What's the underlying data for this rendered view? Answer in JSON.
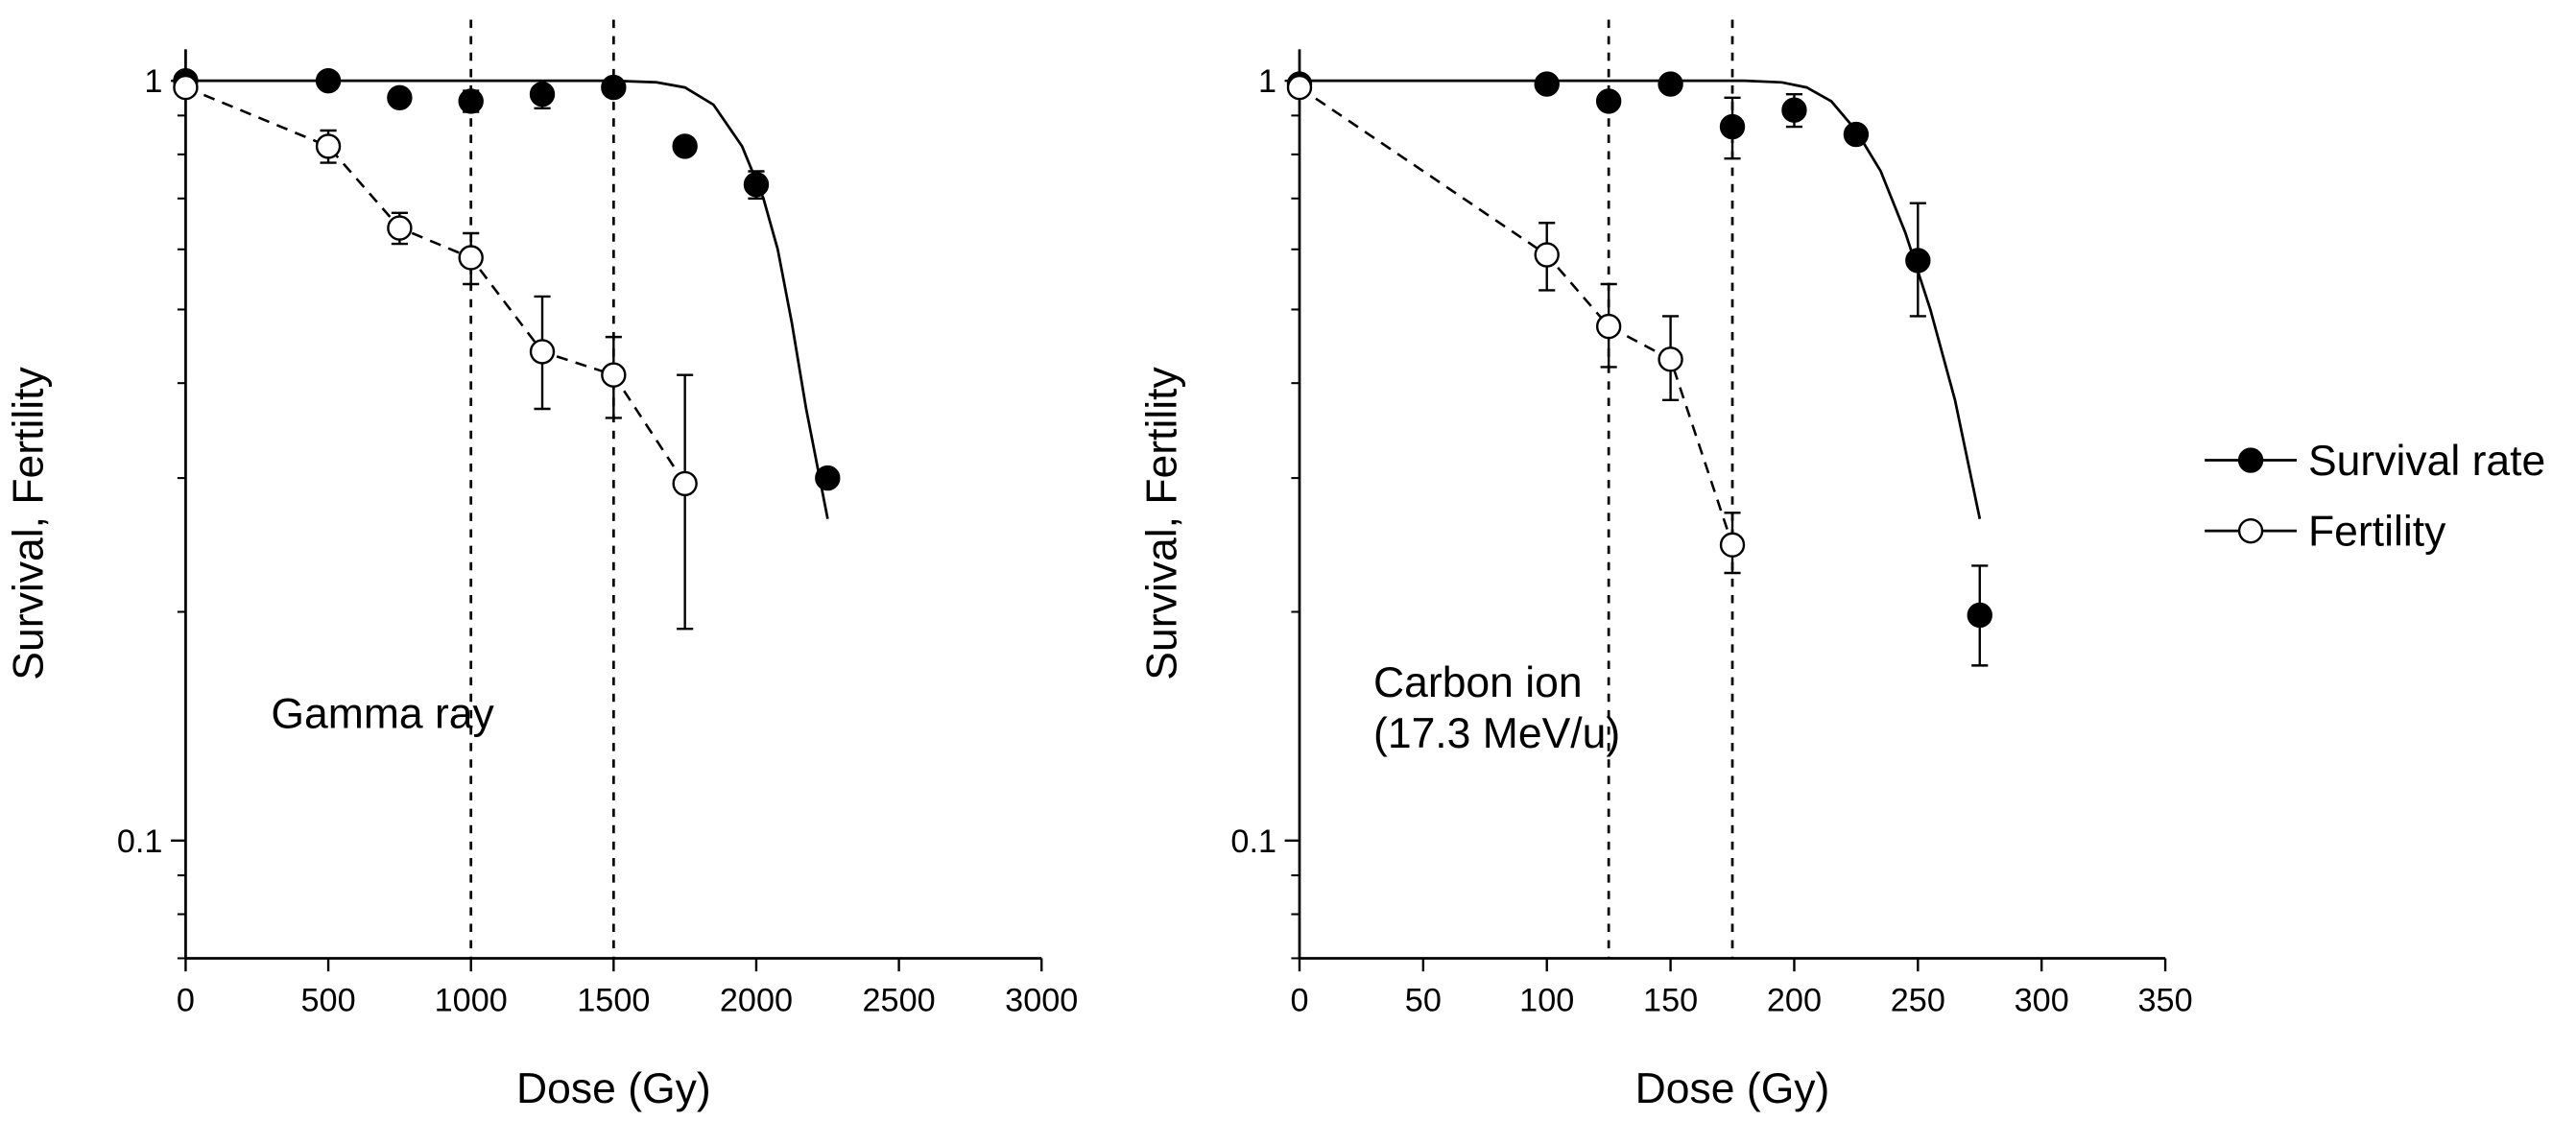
{
  "chart_data": [
    {
      "type": "scatter",
      "annotation": [
        "Gamma ray"
      ],
      "xlabel": "Dose (Gy)",
      "ylabel": "Survival, Fertility",
      "xlim": [
        0,
        3000
      ],
      "ylim": [
        0.07,
        1.1
      ],
      "yscale": "log",
      "xticks": [
        0,
        500,
        1000,
        1500,
        2000,
        2500,
        3000
      ],
      "yticks": [
        {
          "value": 0.1,
          "label": "0.1"
        },
        {
          "value": 1,
          "label": "1"
        }
      ],
      "vlines": [
        1000,
        1500
      ],
      "series": [
        {
          "name": "Survival rate",
          "marker": "filled-circle",
          "line": "solid",
          "points": [
            {
              "x": 0,
              "y": 1.0
            },
            {
              "x": 500,
              "y": 1.0
            },
            {
              "x": 750,
              "y": 0.95
            },
            {
              "x": 1000,
              "y": 0.94,
              "err": [
                0.91,
                0.97
              ]
            },
            {
              "x": 1250,
              "y": 0.96,
              "err": [
                0.92,
                1.0
              ]
            },
            {
              "x": 1500,
              "y": 0.98
            },
            {
              "x": 1750,
              "y": 0.82
            },
            {
              "x": 2000,
              "y": 0.73,
              "err": [
                0.7,
                0.76
              ]
            },
            {
              "x": 2250,
              "y": 0.3
            }
          ],
          "curve": [
            [
              0,
              1.0
            ],
            [
              500,
              1.0
            ],
            [
              1000,
              1.0
            ],
            [
              1500,
              1.0
            ],
            [
              1650,
              0.995
            ],
            [
              1750,
              0.98
            ],
            [
              1850,
              0.93
            ],
            [
              1950,
              0.82
            ],
            [
              2025,
              0.7
            ],
            [
              2075,
              0.6
            ],
            [
              2125,
              0.48
            ],
            [
              2175,
              0.37
            ],
            [
              2250,
              0.265
            ]
          ]
        },
        {
          "name": "Fertility",
          "marker": "open-circle",
          "line": "dashed",
          "points": [
            {
              "x": 0,
              "y": 0.98
            },
            {
              "x": 500,
              "y": 0.82,
              "err": [
                0.78,
                0.86
              ]
            },
            {
              "x": 750,
              "y": 0.64,
              "err": [
                0.61,
                0.67
              ]
            },
            {
              "x": 1000,
              "y": 0.585,
              "err": [
                0.54,
                0.63
              ]
            },
            {
              "x": 1250,
              "y": 0.44,
              "err": [
                0.37,
                0.52
              ]
            },
            {
              "x": 1500,
              "y": 0.41,
              "err": [
                0.36,
                0.46
              ]
            },
            {
              "x": 1750,
              "y": 0.295,
              "err": [
                0.19,
                0.41
              ]
            }
          ]
        }
      ]
    },
    {
      "type": "scatter",
      "annotation": [
        "Carbon ion",
        "(17.3 MeV/u)"
      ],
      "xlabel": "Dose (Gy)",
      "ylabel": "Survival, Fertility",
      "xlim": [
        0,
        350
      ],
      "ylim": [
        0.07,
        1.1
      ],
      "yscale": "log",
      "xticks": [
        0,
        50,
        100,
        150,
        200,
        250,
        300,
        350
      ],
      "yticks": [
        {
          "value": 0.1,
          "label": "0.1"
        },
        {
          "value": 1,
          "label": "1"
        }
      ],
      "vlines": [
        125,
        175
      ],
      "series": [
        {
          "name": "Survival rate",
          "marker": "filled-circle",
          "line": "solid",
          "points": [
            {
              "x": 0,
              "y": 0.99
            },
            {
              "x": 100,
              "y": 0.99
            },
            {
              "x": 125,
              "y": 0.94
            },
            {
              "x": 150,
              "y": 0.99
            },
            {
              "x": 175,
              "y": 0.87,
              "err": [
                0.79,
                0.95
              ]
            },
            {
              "x": 200,
              "y": 0.915,
              "err": [
                0.87,
                0.96
              ]
            },
            {
              "x": 225,
              "y": 0.85
            },
            {
              "x": 250,
              "y": 0.58,
              "err": [
                0.49,
                0.69
              ]
            },
            {
              "x": 275,
              "y": 0.198,
              "err": [
                0.17,
                0.23
              ]
            }
          ],
          "curve": [
            [
              0,
              1.0
            ],
            [
              100,
              1.0
            ],
            [
              150,
              1.0
            ],
            [
              180,
              1.0
            ],
            [
              195,
              0.995
            ],
            [
              205,
              0.98
            ],
            [
              215,
              0.94
            ],
            [
              225,
              0.86
            ],
            [
              235,
              0.76
            ],
            [
              245,
              0.63
            ],
            [
              255,
              0.5
            ],
            [
              265,
              0.38
            ],
            [
              275,
              0.265
            ]
          ]
        },
        {
          "name": "Fertility",
          "marker": "open-circle",
          "line": "dashed",
          "points": [
            {
              "x": 0,
              "y": 0.98
            },
            {
              "x": 100,
              "y": 0.59,
              "err": [
                0.53,
                0.65
              ]
            },
            {
              "x": 125,
              "y": 0.475,
              "err": [
                0.42,
                0.54
              ]
            },
            {
              "x": 150,
              "y": 0.43,
              "err": [
                0.38,
                0.49
              ]
            },
            {
              "x": 175,
              "y": 0.245,
              "err": [
                0.225,
                0.27
              ]
            }
          ]
        }
      ]
    }
  ],
  "legend": {
    "position": "right",
    "items": [
      {
        "label": "Survival rate",
        "marker": "filled-circle"
      },
      {
        "label": "Fertility",
        "marker": "open-circle"
      }
    ]
  }
}
